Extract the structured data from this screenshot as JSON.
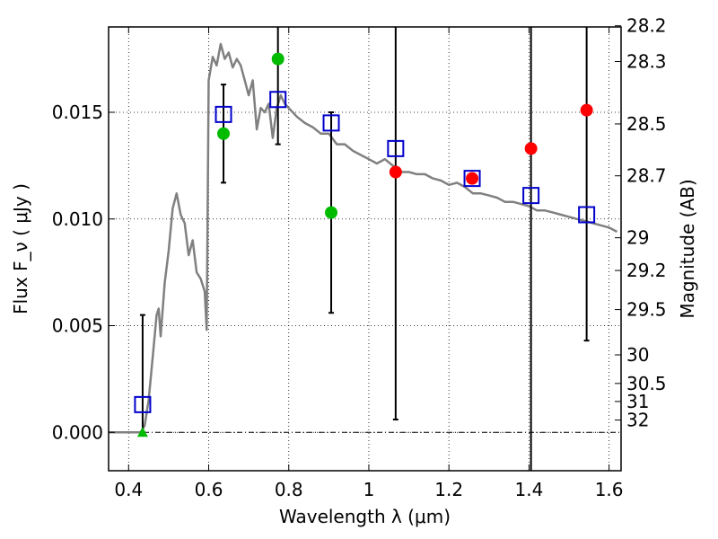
{
  "chart_data": {
    "type": "scatter",
    "xlabel": "Wavelength  λ (μm)",
    "ylabel": "Flux  F_ν  ( μJy )",
    "ylabel_right": "Magnitude (AB)",
    "xlim": [
      0.35,
      1.63
    ],
    "ylim": [
      -0.0018,
      0.019
    ],
    "grid": true,
    "x_ticks": [
      0.4,
      0.6,
      0.8,
      1.0,
      1.2,
      1.4,
      1.6
    ],
    "x_tick_labels": [
      "0.4",
      "0.6",
      "0.8",
      "1",
      "1.2",
      "1.4",
      "1.6"
    ],
    "y_ticks": [
      0.0,
      0.005,
      0.01,
      0.015
    ],
    "y_tick_labels": [
      "0.000",
      "0.005",
      "0.010",
      "0.015"
    ],
    "mag_tick_labels": [
      "28.2",
      "28.3",
      "28.5",
      "28.7",
      "29",
      "29.2",
      "29.5",
      "30",
      "30.5",
      "31",
      "32"
    ],
    "model_spectrum": {
      "x": [
        0.35,
        0.38,
        0.42,
        0.43,
        0.44,
        0.45,
        0.46,
        0.47,
        0.475,
        0.48,
        0.49,
        0.5,
        0.51,
        0.52,
        0.53,
        0.54,
        0.55,
        0.56,
        0.57,
        0.58,
        0.59,
        0.595,
        0.6,
        0.61,
        0.62,
        0.63,
        0.64,
        0.65,
        0.66,
        0.67,
        0.68,
        0.69,
        0.7,
        0.71,
        0.72,
        0.73,
        0.74,
        0.75,
        0.76,
        0.77,
        0.78,
        0.79,
        0.8,
        0.82,
        0.84,
        0.86,
        0.88,
        0.9,
        0.92,
        0.94,
        0.96,
        0.98,
        1.0,
        1.02,
        1.04,
        1.06,
        1.08,
        1.1,
        1.12,
        1.14,
        1.16,
        1.18,
        1.2,
        1.22,
        1.24,
        1.26,
        1.28,
        1.3,
        1.32,
        1.34,
        1.36,
        1.38,
        1.4,
        1.42,
        1.44,
        1.46,
        1.48,
        1.5,
        1.52,
        1.54,
        1.56,
        1.58,
        1.6,
        1.62
      ],
      "y": [
        0.0,
        0.0,
        0.0,
        0.0,
        0.0003,
        0.0015,
        0.0035,
        0.0055,
        0.0058,
        0.0045,
        0.007,
        0.0085,
        0.0105,
        0.0112,
        0.0102,
        0.0098,
        0.0083,
        0.009,
        0.0075,
        0.0072,
        0.0066,
        0.0048,
        0.0165,
        0.0176,
        0.0172,
        0.0182,
        0.0175,
        0.0178,
        0.0171,
        0.0175,
        0.0172,
        0.0165,
        0.0158,
        0.0165,
        0.0142,
        0.0152,
        0.015,
        0.0154,
        0.0138,
        0.0152,
        0.0158,
        0.0154,
        0.0152,
        0.0148,
        0.0145,
        0.0143,
        0.014,
        0.014,
        0.0135,
        0.0135,
        0.0132,
        0.013,
        0.0128,
        0.0126,
        0.0128,
        0.0125,
        0.0122,
        0.0122,
        0.0121,
        0.0121,
        0.0119,
        0.0118,
        0.0116,
        0.0117,
        0.0115,
        0.0112,
        0.0112,
        0.0111,
        0.011,
        0.0108,
        0.0108,
        0.0107,
        0.0106,
        0.0104,
        0.0104,
        0.0103,
        0.0102,
        0.0101,
        0.01,
        0.0099,
        0.0098,
        0.0097,
        0.0096,
        0.0094
      ],
      "color": "#808080"
    },
    "model_points": {
      "x": [
        0.435,
        0.637,
        0.773,
        0.906,
        1.067,
        1.258,
        1.405,
        1.544
      ],
      "y": [
        0.0013,
        0.0149,
        0.0156,
        0.0145,
        0.0133,
        0.0119,
        0.0111,
        0.0102
      ],
      "color": "#0000cc"
    },
    "observed_green": {
      "x": [
        0.637,
        0.773,
        0.906
      ],
      "y": [
        0.014,
        0.0175,
        0.0103
      ],
      "color": "#00bb00"
    },
    "observed_red": {
      "x": [
        1.067,
        1.258,
        1.405,
        1.544
      ],
      "y": [
        0.0122,
        0.0119,
        0.0133,
        0.0151
      ],
      "color": "#ff0000"
    },
    "upper_limit": {
      "x": [
        0.435
      ],
      "y": [
        0.0
      ],
      "color": "#00bb00"
    },
    "error_bars": [
      {
        "x": 0.435,
        "low": 0.0,
        "high": 0.0055
      },
      {
        "x": 0.637,
        "low": 0.0117,
        "high": 0.0163
      },
      {
        "x": 0.773,
        "low": 0.0135,
        "high": 0.019
      },
      {
        "x": 0.906,
        "low": 0.0056,
        "high": 0.015
      },
      {
        "x": 1.067,
        "low": 0.0006,
        "high": 0.019
      },
      {
        "x": 1.405,
        "low": -0.0018,
        "high": 0.019
      },
      {
        "x": 1.544,
        "low": 0.0043,
        "high": 0.019
      }
    ]
  }
}
